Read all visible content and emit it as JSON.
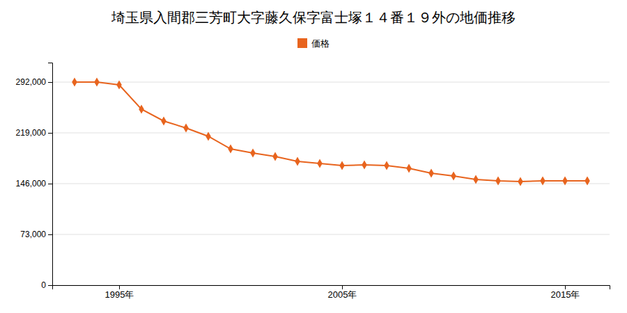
{
  "chart_data": {
    "type": "line",
    "title": "埼玉県入間郡三芳町大字藤久保字富士塚１４番１９外の地価推移",
    "x": [
      1993,
      1994,
      1995,
      1996,
      1997,
      1998,
      1999,
      2000,
      2001,
      2002,
      2003,
      2004,
      2005,
      2006,
      2007,
      2008,
      2009,
      2010,
      2011,
      2012,
      2013,
      2014,
      2015,
      2016
    ],
    "series": [
      {
        "name": "価格",
        "color": "#e8641e",
        "marker": "diamond",
        "values": [
          292000,
          292000,
          288000,
          253000,
          236000,
          226000,
          214000,
          196000,
          190000,
          185000,
          178000,
          175000,
          172000,
          173000,
          172000,
          168000,
          161000,
          157000,
          152000,
          150000,
          149000,
          150000,
          150000,
          150000
        ]
      }
    ],
    "xlim": [
      1992,
      2017
    ],
    "xticks": [
      {
        "value": 1995,
        "label": "1995年"
      },
      {
        "value": 2005,
        "label": "2005年"
      },
      {
        "value": 2015,
        "label": "2015年"
      }
    ],
    "ylim": [
      0,
      320000
    ],
    "yticks": [
      0,
      {
        "value": 73000,
        "label": "73,000"
      },
      {
        "value": 146000,
        "label": "146,000"
      },
      {
        "value": 219000,
        "label": "219,000"
      },
      {
        "value": 292000,
        "label": "292,000"
      }
    ],
    "grid": true,
    "legend": "top"
  }
}
